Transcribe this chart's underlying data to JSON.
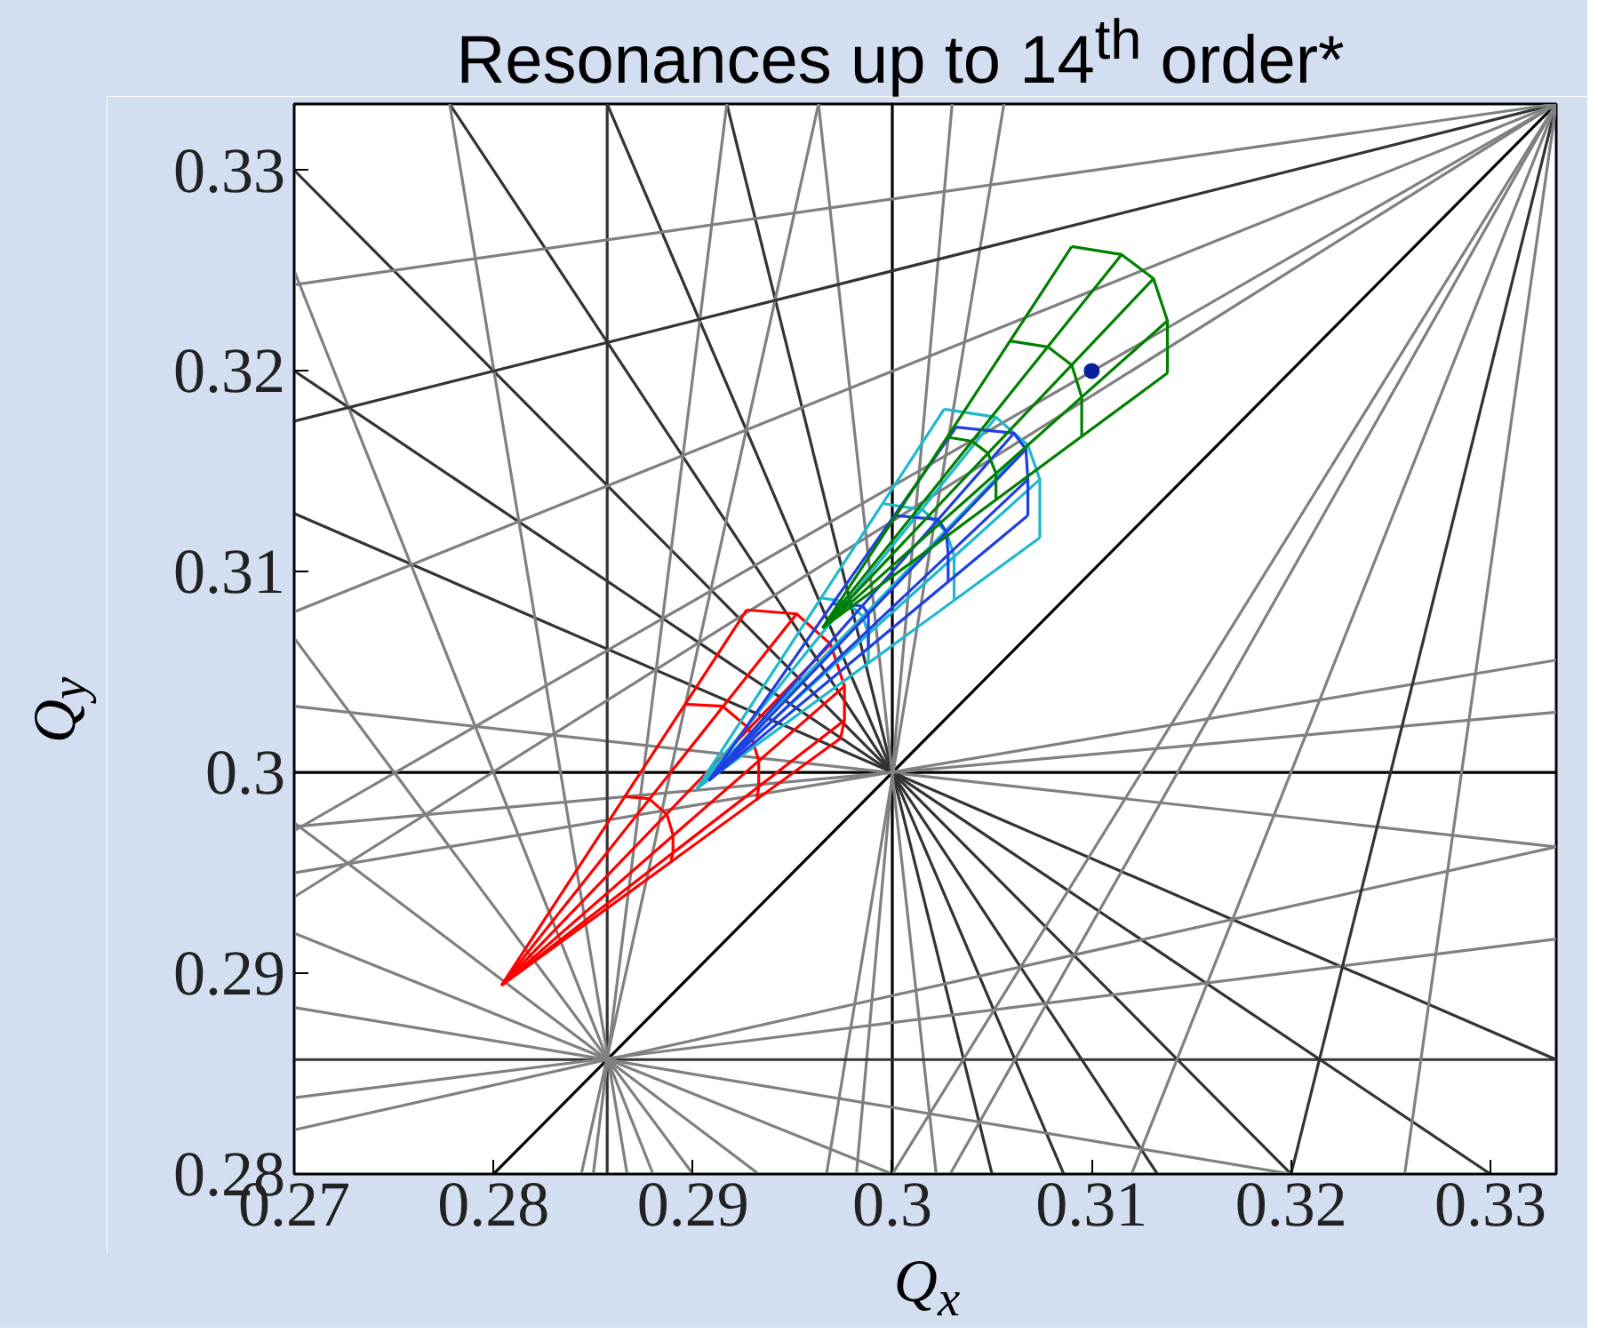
{
  "chart_data": {
    "type": "line",
    "title": "Resonances up to 14$^{th}$ order*",
    "xlabel": "Q$_{x}$",
    "ylabel": "Q$_{y}$",
    "xlim": [
      0.27,
      0.3333
    ],
    "ylim": [
      0.28,
      0.3333
    ],
    "xticks": [
      0.27,
      0.28,
      0.29,
      0.3,
      0.31,
      0.32,
      0.33
    ],
    "yticks": [
      0.28,
      0.29,
      0.3,
      0.31,
      0.32,
      0.33
    ],
    "grid": false,
    "series": [
      {
        "color": "#000000",
        "x": [
          0.28,
          0.3333
        ],
        "values": [
          0.28,
          0.3333
        ]
      },
      {
        "color": "#000000",
        "x": [
          0.3,
          0.3
        ],
        "values": [
          0.28,
          0.3333
        ]
      },
      {
        "color": "#000000",
        "x": [
          0.27,
          0.3333
        ],
        "values": [
          0.3,
          0.3
        ]
      },
      {
        "color": "#808080",
        "x": [
          0.27,
          0.3333
        ],
        "values": [
          0.3033,
          0.2963
        ]
      },
      {
        "color": "#333333",
        "x": [
          0.27,
          0.3333
        ],
        "values": [
          0.3129,
          0.2857
        ]
      },
      {
        "color": "#333333",
        "x": [
          0.27,
          0.33
        ],
        "values": [
          0.32,
          0.28
        ]
      },
      {
        "color": "#333333",
        "x": [
          0.27,
          0.32
        ],
        "values": [
          0.33,
          0.28
        ]
      },
      {
        "color": "#333333",
        "x": [
          0.2778,
          0.3133
        ],
        "values": [
          0.3333,
          0.28
        ]
      },
      {
        "color": "#333333",
        "x": [
          0.2857,
          0.3086
        ],
        "values": [
          0.3333,
          0.28
        ]
      },
      {
        "color": "#333333",
        "x": [
          0.2917,
          0.305
        ],
        "values": [
          0.3333,
          0.28
        ]
      },
      {
        "color": "#808080",
        "x": [
          0.2963,
          0.3022
        ],
        "values": [
          0.3333,
          0.28
        ]
      },
      {
        "color": "#808080",
        "x": [
          0.303,
          0.2982
        ],
        "values": [
          0.3333,
          0.28
        ]
      },
      {
        "color": "#808080",
        "x": [
          0.3056,
          0.2967
        ],
        "values": [
          0.3333,
          0.28
        ]
      },
      {
        "color": "#808080",
        "x": [
          0.27,
          0.3333
        ],
        "values": [
          0.2973,
          0.303
        ]
      },
      {
        "color": "#808080",
        "x": [
          0.27,
          0.3333
        ],
        "values": [
          0.295,
          0.3056
        ]
      },
      {
        "color": "#333333",
        "x": [
          0.2857,
          0.2857
        ],
        "values": [
          0.28,
          0.3333
        ]
      },
      {
        "color": "#333333",
        "x": [
          0.27,
          0.3333
        ],
        "values": [
          0.2857,
          0.2857
        ]
      },
      {
        "color": "#808080",
        "x": [
          0.27,
          0.32
        ],
        "values": [
          0.2883,
          0.28
        ]
      },
      {
        "color": "#808080",
        "x": [
          0.27,
          0.3
        ],
        "values": [
          0.292,
          0.28
        ]
      },
      {
        "color": "#808080",
        "x": [
          0.27,
          0.2933
        ],
        "values": [
          0.2975,
          0.28
        ]
      },
      {
        "color": "#808080",
        "x": [
          0.27,
          0.29
        ],
        "values": [
          0.3067,
          0.28
        ]
      },
      {
        "color": "#808080",
        "x": [
          0.27,
          0.288
        ],
        "values": [
          0.325,
          0.28
        ]
      },
      {
        "color": "#808080",
        "x": [
          0.2778,
          0.2867
        ],
        "values": [
          0.3333,
          0.28
        ]
      },
      {
        "color": "#808080",
        "x": [
          0.2917,
          0.285
        ],
        "values": [
          0.3333,
          0.28
        ]
      },
      {
        "color": "#808080",
        "x": [
          0.27,
          0.3333
        ],
        "values": [
          0.2838,
          0.2917
        ]
      },
      {
        "color": "#808080",
        "x": [
          0.2963,
          0.2844
        ],
        "values": [
          0.3333,
          0.28
        ]
      },
      {
        "color": "#808080",
        "x": [
          0.27,
          0.3333
        ],
        "values": [
          0.2822,
          0.2963
        ]
      },
      {
        "color": "#333333",
        "x": [
          0.27,
          0.3333
        ],
        "values": [
          0.3175,
          0.3333
        ]
      },
      {
        "color": "#333333",
        "x": [
          0.32,
          0.3333
        ],
        "values": [
          0.28,
          0.3333
        ]
      },
      {
        "color": "#808080",
        "x": [
          0.27,
          0.3333
        ],
        "values": [
          0.308,
          0.3333
        ]
      },
      {
        "color": "#808080",
        "x": [
          0.312,
          0.3333
        ],
        "values": [
          0.28,
          0.3333
        ]
      },
      {
        "color": "#808080",
        "x": [
          0.27,
          0.3333
        ],
        "values": [
          0.3243,
          0.3333
        ]
      },
      {
        "color": "#808080",
        "x": [
          0.3257,
          0.3333
        ],
        "values": [
          0.28,
          0.3333
        ]
      },
      {
        "color": "#808080",
        "x": [
          0.27,
          0.3333
        ],
        "values": [
          0.2938,
          0.3333
        ]
      },
      {
        "color": "#808080",
        "x": [
          0.3,
          0.3333
        ],
        "values": [
          0.28,
          0.3333
        ]
      },
      {
        "color": "#808080",
        "x": [
          0.27,
          0.3333
        ],
        "values": [
          0.2971,
          0.3333
        ]
      },
      {
        "color": "#808080",
        "x": [
          0.3029,
          0.3333
        ],
        "values": [
          0.28,
          0.3333
        ]
      },
      {
        "color": "#ff0000",
        "x": [
          0.2804,
          0.2927
        ],
        "values": [
          0.2894,
          0.3081
        ]
      },
      {
        "color": "#ff0000",
        "x": [
          0.2804,
          0.2952
        ],
        "values": [
          0.2894,
          0.3079
        ]
      },
      {
        "color": "#ff0000",
        "x": [
          0.2804,
          0.2969
        ],
        "values": [
          0.2894,
          0.3064
        ]
      },
      {
        "color": "#ff0000",
        "x": [
          0.2804,
          0.2976
        ],
        "values": [
          0.2894,
          0.3043
        ]
      },
      {
        "color": "#ff0000",
        "x": [
          0.2804,
          0.2976
        ],
        "values": [
          0.2894,
          0.3026
        ]
      },
      {
        "color": "#ff0000",
        "x": [
          0.2804,
          0.2974
        ],
        "values": [
          0.2894,
          0.3017
        ]
      },
      {
        "color": "#ff0000",
        "x": [
          0.2927,
          0.2952,
          0.2969,
          0.2976,
          0.2976,
          0.2974
        ],
        "values": [
          0.3081,
          0.3079,
          0.3064,
          0.3043,
          0.3026,
          0.3017
        ]
      },
      {
        "color": "#ff0000",
        "x": [
          0.2866,
          0.2878,
          0.2887,
          0.289,
          0.289,
          0.2889
        ],
        "values": [
          0.2988,
          0.2987,
          0.2979,
          0.2969,
          0.296,
          0.2956
        ]
      },
      {
        "color": "#ff0000",
        "x": [
          0.2896,
          0.2915,
          0.2928,
          0.2933,
          0.2933,
          0.2932
        ],
        "values": [
          0.3034,
          0.3033,
          0.3022,
          0.3006,
          0.2993,
          0.2986
        ]
      },
      {
        "color": "#1fb8cc",
        "x": [
          0.2902,
          0.3026
        ],
        "values": [
          0.2992,
          0.3181
        ]
      },
      {
        "color": "#1fb8cc",
        "x": [
          0.2902,
          0.3052
        ],
        "values": [
          0.2992,
          0.3177
        ]
      },
      {
        "color": "#1fb8cc",
        "x": [
          0.2902,
          0.3068
        ],
        "values": [
          0.2992,
          0.3163
        ]
      },
      {
        "color": "#1fb8cc",
        "x": [
          0.2902,
          0.3074
        ],
        "values": [
          0.2992,
          0.3146
        ]
      },
      {
        "color": "#1fb8cc",
        "x": [
          0.2902,
          0.3074
        ],
        "values": [
          0.2992,
          0.3117
        ]
      },
      {
        "color": "#1fb8cc",
        "x": [
          0.3026,
          0.3052,
          0.3068,
          0.3074,
          0.3074
        ],
        "values": [
          0.3181,
          0.3177,
          0.3163,
          0.3146,
          0.3117
        ]
      },
      {
        "color": "#1fb8cc",
        "x": [
          0.2964,
          0.2977,
          0.2985,
          0.2988,
          0.2988
        ],
        "values": [
          0.3087,
          0.3085,
          0.3078,
          0.3069,
          0.3055
        ]
      },
      {
        "color": "#1fb8cc",
        "x": [
          0.2995,
          0.3015,
          0.3027,
          0.3031,
          0.3031
        ],
        "values": [
          0.3134,
          0.3131,
          0.312,
          0.3108,
          0.3086
        ]
      },
      {
        "color": "#1f3fe0",
        "x": [
          0.2908,
          0.3032
        ],
        "values": [
          0.2996,
          0.3172
        ]
      },
      {
        "color": "#1f3fe0",
        "x": [
          0.2908,
          0.3061
        ],
        "values": [
          0.2996,
          0.3169
        ]
      },
      {
        "color": "#1f3fe0",
        "x": [
          0.2908,
          0.3067
        ],
        "values": [
          0.2996,
          0.3161
        ]
      },
      {
        "color": "#1f3fe0",
        "x": [
          0.2908,
          0.3068
        ],
        "values": [
          0.2996,
          0.3146
        ]
      },
      {
        "color": "#1f3fe0",
        "x": [
          0.2908,
          0.3068
        ],
        "values": [
          0.2996,
          0.3128
        ]
      },
      {
        "color": "#1f3fe0",
        "x": [
          0.3032,
          0.3061,
          0.3067,
          0.3068,
          0.3068
        ],
        "values": [
          0.3172,
          0.3169,
          0.3161,
          0.3146,
          0.3128
        ]
      },
      {
        "color": "#1f3fe0",
        "x": [
          0.297,
          0.2985,
          0.2988,
          0.2988,
          0.2988
        ],
        "values": [
          0.3084,
          0.3083,
          0.3079,
          0.3071,
          0.3062
        ]
      },
      {
        "color": "#1f3fe0",
        "x": [
          0.3001,
          0.3023,
          0.3027,
          0.3028,
          0.3028
        ],
        "values": [
          0.3128,
          0.3126,
          0.312,
          0.3109,
          0.3095
        ]
      },
      {
        "color": "#008000",
        "x": [
          0.2965,
          0.309
        ],
        "values": [
          0.3072,
          0.3262
        ]
      },
      {
        "color": "#008000",
        "x": [
          0.2965,
          0.3115
        ],
        "values": [
          0.3072,
          0.3258
        ]
      },
      {
        "color": "#008000",
        "x": [
          0.2965,
          0.3131
        ],
        "values": [
          0.3072,
          0.3246
        ]
      },
      {
        "color": "#008000",
        "x": [
          0.2965,
          0.3138
        ],
        "values": [
          0.3072,
          0.3225
        ]
      },
      {
        "color": "#008000",
        "x": [
          0.2965,
          0.3138
        ],
        "values": [
          0.3072,
          0.3199
        ]
      },
      {
        "color": "#008000",
        "x": [
          0.309,
          0.3115,
          0.3131,
          0.3138,
          0.3138
        ],
        "values": [
          0.3262,
          0.3258,
          0.3246,
          0.3225,
          0.3199
        ]
      },
      {
        "color": "#008000",
        "x": [
          0.3028,
          0.304,
          0.3048,
          0.3052,
          0.3052
        ],
        "values": [
          0.3167,
          0.3165,
          0.3159,
          0.3149,
          0.3136
        ]
      },
      {
        "color": "#008000",
        "x": [
          0.3059,
          0.3078,
          0.309,
          0.3095,
          0.3095
        ],
        "values": [
          0.3215,
          0.3212,
          0.3203,
          0.3187,
          0.3167
        ]
      },
      {
        "type": "scatter",
        "marker": "circle",
        "color": "#0a1fa0",
        "x": [
          0.31
        ],
        "values": [
          0.32
        ]
      }
    ]
  }
}
